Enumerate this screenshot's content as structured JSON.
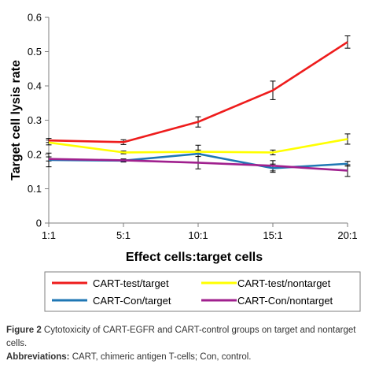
{
  "chart_data": {
    "type": "line",
    "categories": [
      "1:1",
      "5:1",
      "10:1",
      "15:1",
      "20:1"
    ],
    "xlabel": "Effect cells:target cells",
    "ylabel": "Target cell lysis rate",
    "ylim": [
      0,
      0.6
    ],
    "yticks": [
      "0",
      "0.1",
      "0.2",
      "0.3",
      "0.4",
      "0.5",
      "0.6"
    ],
    "grid": false,
    "legend_position": "bottom",
    "series": [
      {
        "name": "CART-test/target",
        "color": "#ee1c1c",
        "values": [
          0.241,
          0.236,
          0.295,
          0.387,
          0.528
        ],
        "errors": [
          0.006,
          0.007,
          0.015,
          0.027,
          0.018
        ]
      },
      {
        "name": "CART-test/nontarget",
        "color": "#ffff00",
        "values": [
          0.235,
          0.206,
          0.208,
          0.206,
          0.245
        ],
        "errors": [
          0.007,
          0.004,
          0.005,
          0.007,
          0.015
        ]
      },
      {
        "name": "CART-Con/target",
        "color": "#1f77b4",
        "values": [
          0.184,
          0.182,
          0.202,
          0.16,
          0.173
        ],
        "errors": [
          0.02,
          0.004,
          0.025,
          0.012,
          0.007
        ]
      },
      {
        "name": "CART-Con/nontarget",
        "color": "#a0208e",
        "values": [
          0.187,
          0.183,
          0.176,
          0.167,
          0.153
        ],
        "errors": [
          0.006,
          0.004,
          0.018,
          0.015,
          0.017
        ]
      }
    ]
  },
  "caption": {
    "figure_label": "Figure 2",
    "figure_text": " Cytotoxicity of CART-EGFR and CART-control groups on target and nontarget cells.",
    "abbrev_label": "Abbreviations:",
    "abbrev_text": " CART, chimeric antigen T-cells; Con, control."
  }
}
